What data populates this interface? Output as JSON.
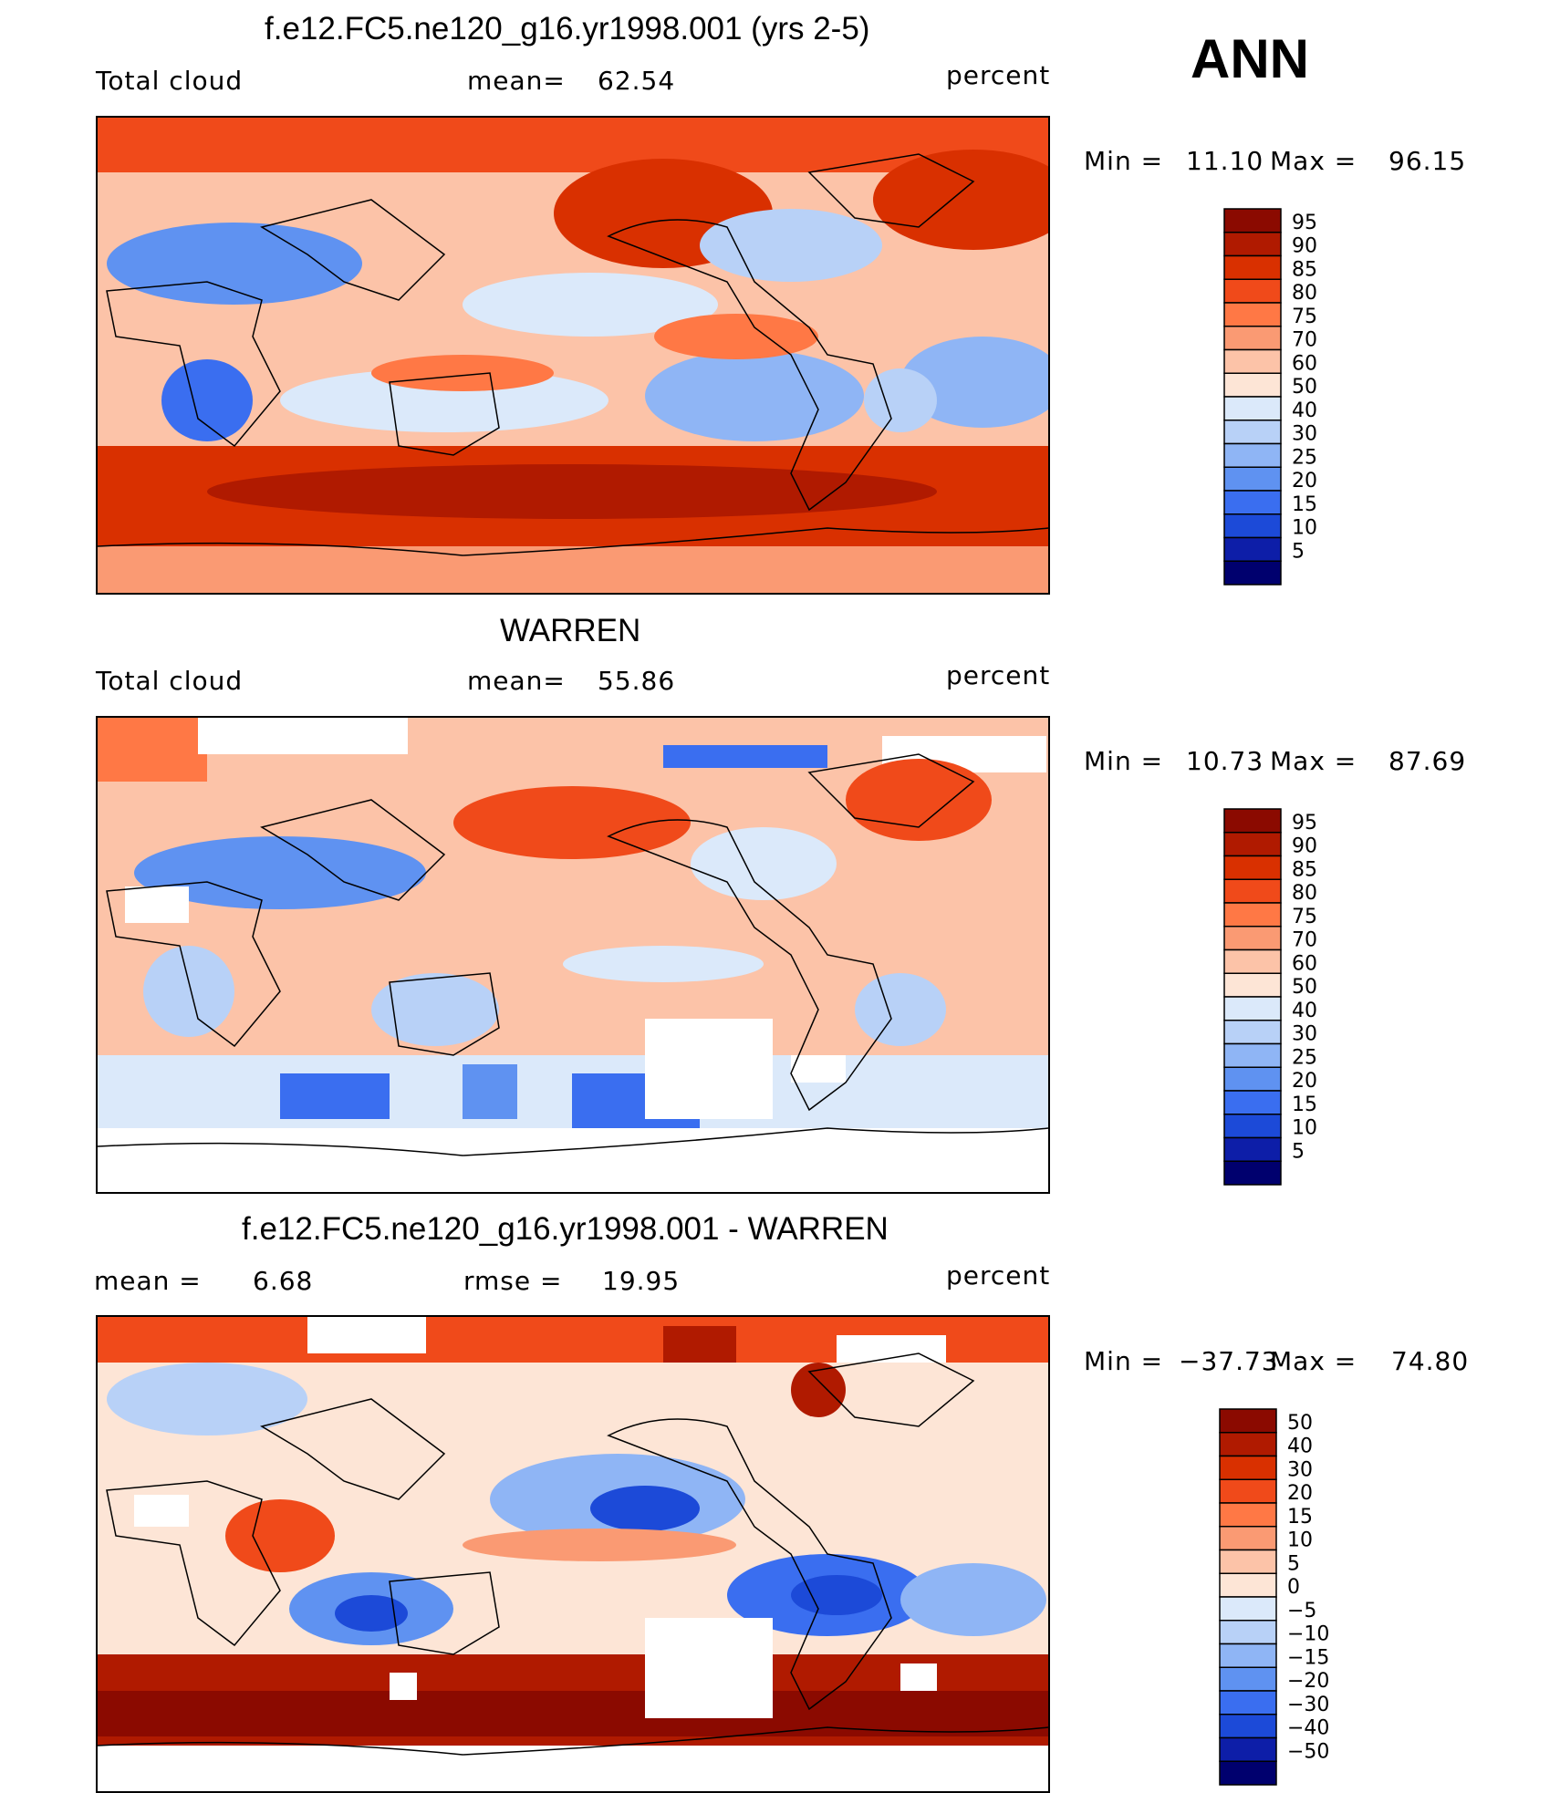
{
  "season": "ANN",
  "units_label": "percent",
  "chart_data": [
    {
      "type": "heatmap",
      "panel": "model",
      "title": "f.e12.FC5.ne120_g16.yr1998.001 (yrs 2-5)",
      "variable": "Total cloud",
      "stat1_label": "mean=",
      "stat1_value": "62.54",
      "units": "percent",
      "min_label": "Min  =",
      "min_value": "11.10",
      "max_label": "Max  =",
      "max_value": "96.15",
      "levels": [
        "95",
        "90",
        "85",
        "80",
        "75",
        "70",
        "60",
        "50",
        "40",
        "30",
        "25",
        "20",
        "15",
        "10",
        "5"
      ],
      "colors": [
        "#8b0a00",
        "#b01a00",
        "#d93000",
        "#f04a1a",
        "#ff7845",
        "#fa9a73",
        "#fcc3a8",
        "#fde5d6",
        "#dbe9fa",
        "#b8d1f7",
        "#8fb5f5",
        "#5f92f1",
        "#3a6ef0",
        "#1c4ad8",
        "#0d1ea8",
        "#00006e"
      ]
    },
    {
      "type": "heatmap",
      "panel": "obs",
      "title": "WARREN",
      "variable": "Total cloud",
      "stat1_label": "mean=",
      "stat1_value": "55.86",
      "units": "percent",
      "min_label": "Min  =",
      "min_value": "10.73",
      "max_label": "Max  =",
      "max_value": "87.69",
      "levels": [
        "95",
        "90",
        "85",
        "80",
        "75",
        "70",
        "60",
        "50",
        "40",
        "30",
        "25",
        "20",
        "15",
        "10",
        "5"
      ],
      "colors": [
        "#8b0a00",
        "#b01a00",
        "#d93000",
        "#f04a1a",
        "#ff7845",
        "#fa9a73",
        "#fcc3a8",
        "#fde5d6",
        "#dbe9fa",
        "#b8d1f7",
        "#8fb5f5",
        "#5f92f1",
        "#3a6ef0",
        "#1c4ad8",
        "#0d1ea8",
        "#00006e"
      ]
    },
    {
      "type": "heatmap",
      "panel": "difference",
      "title": "f.e12.FC5.ne120_g16.yr1998.001 - WARREN",
      "stat1_label": "mean =",
      "stat1_value": "6.68",
      "stat2_label": "rmse =",
      "stat2_value": "19.95",
      "units": "percent",
      "min_label": "Min  =",
      "min_value": "−37.73",
      "max_label": "Max  =",
      "max_value": "74.80",
      "levels": [
        "50",
        "40",
        "30",
        "20",
        "15",
        "10",
        "5",
        "0",
        "−5",
        "−10",
        "−15",
        "−20",
        "−30",
        "−40",
        "−50"
      ],
      "colors": [
        "#8b0a00",
        "#b01a00",
        "#d93000",
        "#f04a1a",
        "#ff7845",
        "#fa9a73",
        "#fcc3a8",
        "#fde5d6",
        "#dbe9fa",
        "#b8d1f7",
        "#8fb5f5",
        "#5f92f1",
        "#3a6ef0",
        "#1c4ad8",
        "#0d1ea8",
        "#00006e"
      ]
    }
  ]
}
